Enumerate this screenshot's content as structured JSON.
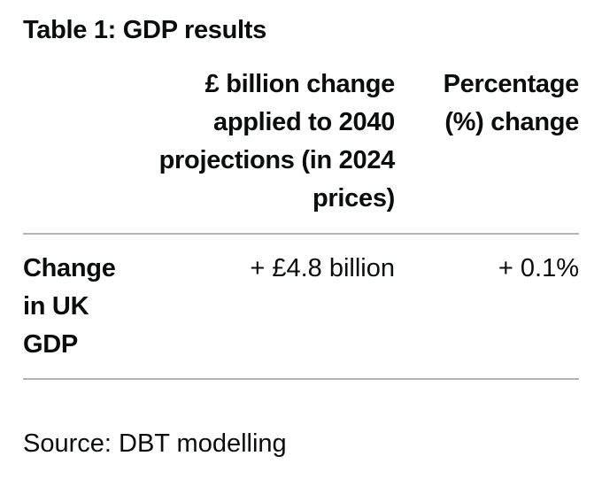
{
  "table": {
    "caption": "Table 1: GDP results",
    "columns": [
      "£ billion change applied to 2040 projections (in 2024 prices)",
      "Percentage (%) change"
    ],
    "rows": [
      {
        "label": "Change in UK GDP",
        "values": [
          "+ £4.8 billion",
          "+ 0.1%"
        ]
      }
    ]
  },
  "source": "Source: DBT modelling"
}
